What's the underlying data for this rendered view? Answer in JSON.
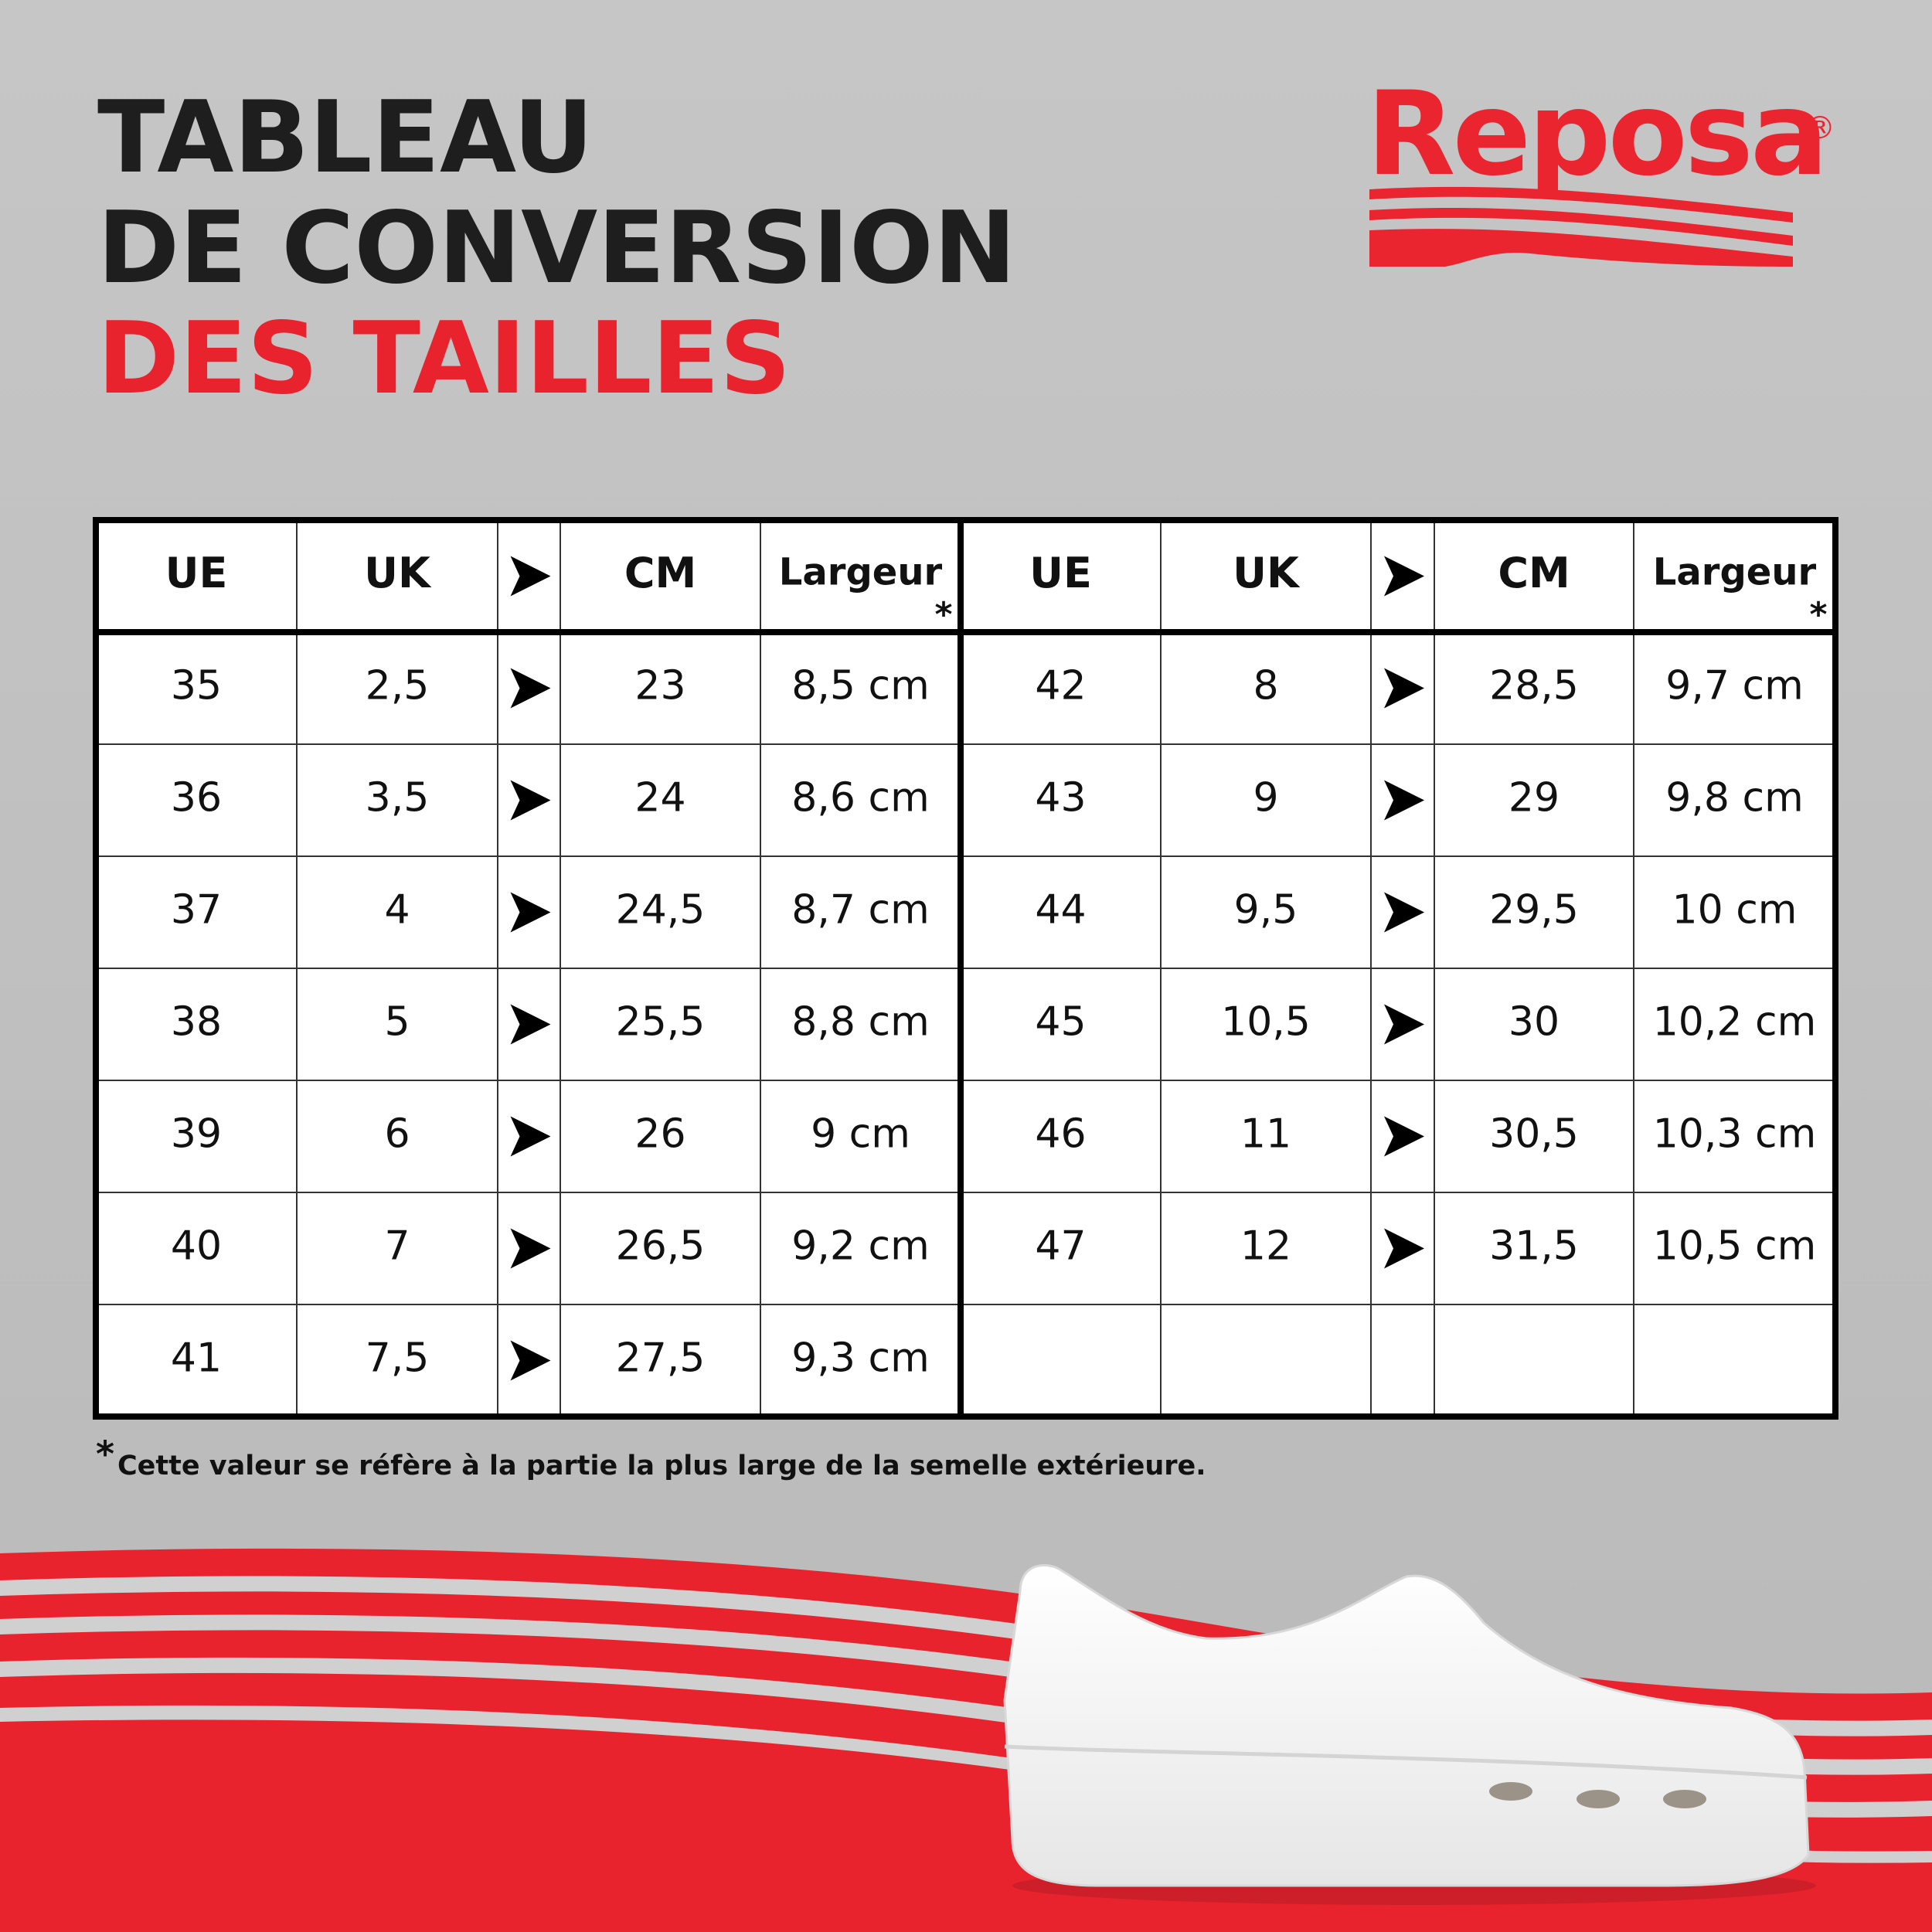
{
  "header": {
    "title_lines": [
      "TABLEAU",
      "DE CONVERSION"
    ],
    "title_highlight": "DES TAILLES"
  },
  "logo": {
    "text": "Reposa",
    "mark": "®"
  },
  "table": {
    "headers": [
      "UE",
      "UK",
      "CM",
      "Largeur"
    ],
    "asterisk": "*",
    "left_rows": [
      [
        "35",
        "2,5",
        "23",
        "8,5 cm"
      ],
      [
        "36",
        "3,5",
        "24",
        "8,6 cm"
      ],
      [
        "37",
        "4",
        "24,5",
        "8,7 cm"
      ],
      [
        "38",
        "5",
        "25,5",
        "8,8 cm"
      ],
      [
        "39",
        "6",
        "26",
        "9 cm"
      ],
      [
        "40",
        "7",
        "26,5",
        "9,2 cm"
      ],
      [
        "41",
        "7,5",
        "27,5",
        "9,3 cm"
      ]
    ],
    "right_rows": [
      [
        "42",
        "8",
        "28,5",
        "9,7 cm"
      ],
      [
        "43",
        "9",
        "29",
        "9,8 cm"
      ],
      [
        "44",
        "9,5",
        "29,5",
        "10 cm"
      ],
      [
        "45",
        "10,5",
        "30",
        "10,2 cm"
      ],
      [
        "46",
        "11",
        "30,5",
        "10,3 cm"
      ],
      [
        "47",
        "12",
        "31,5",
        "10,5 cm"
      ]
    ]
  },
  "footnote": {
    "mark": "*",
    "text": "Cette valeur se réfère à la partie la plus large de la semelle extérieure."
  }
}
